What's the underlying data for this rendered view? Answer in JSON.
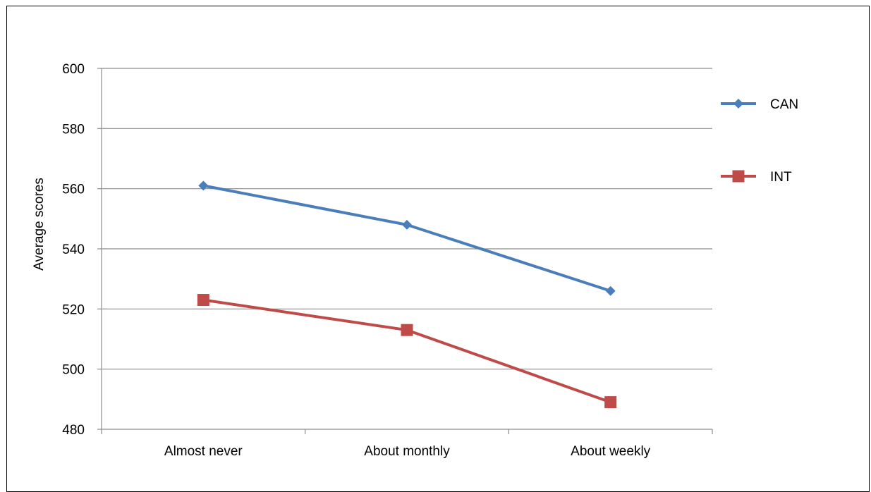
{
  "chart_data": {
    "type": "line",
    "title": "",
    "xlabel": "",
    "ylabel": "Average scores",
    "categories": [
      "Almost never",
      "About monthly",
      "About weekly"
    ],
    "ylim": [
      480,
      600
    ],
    "yticks": [
      480,
      500,
      520,
      540,
      560,
      580,
      600
    ],
    "grid": true,
    "legend_position": "right",
    "series": [
      {
        "name": "CAN",
        "values": [
          561,
          548,
          526
        ],
        "color": "#4a7ebb",
        "marker": "diamond"
      },
      {
        "name": "INT",
        "values": [
          523,
          513,
          489
        ],
        "color": "#be4b48",
        "marker": "square"
      }
    ]
  }
}
